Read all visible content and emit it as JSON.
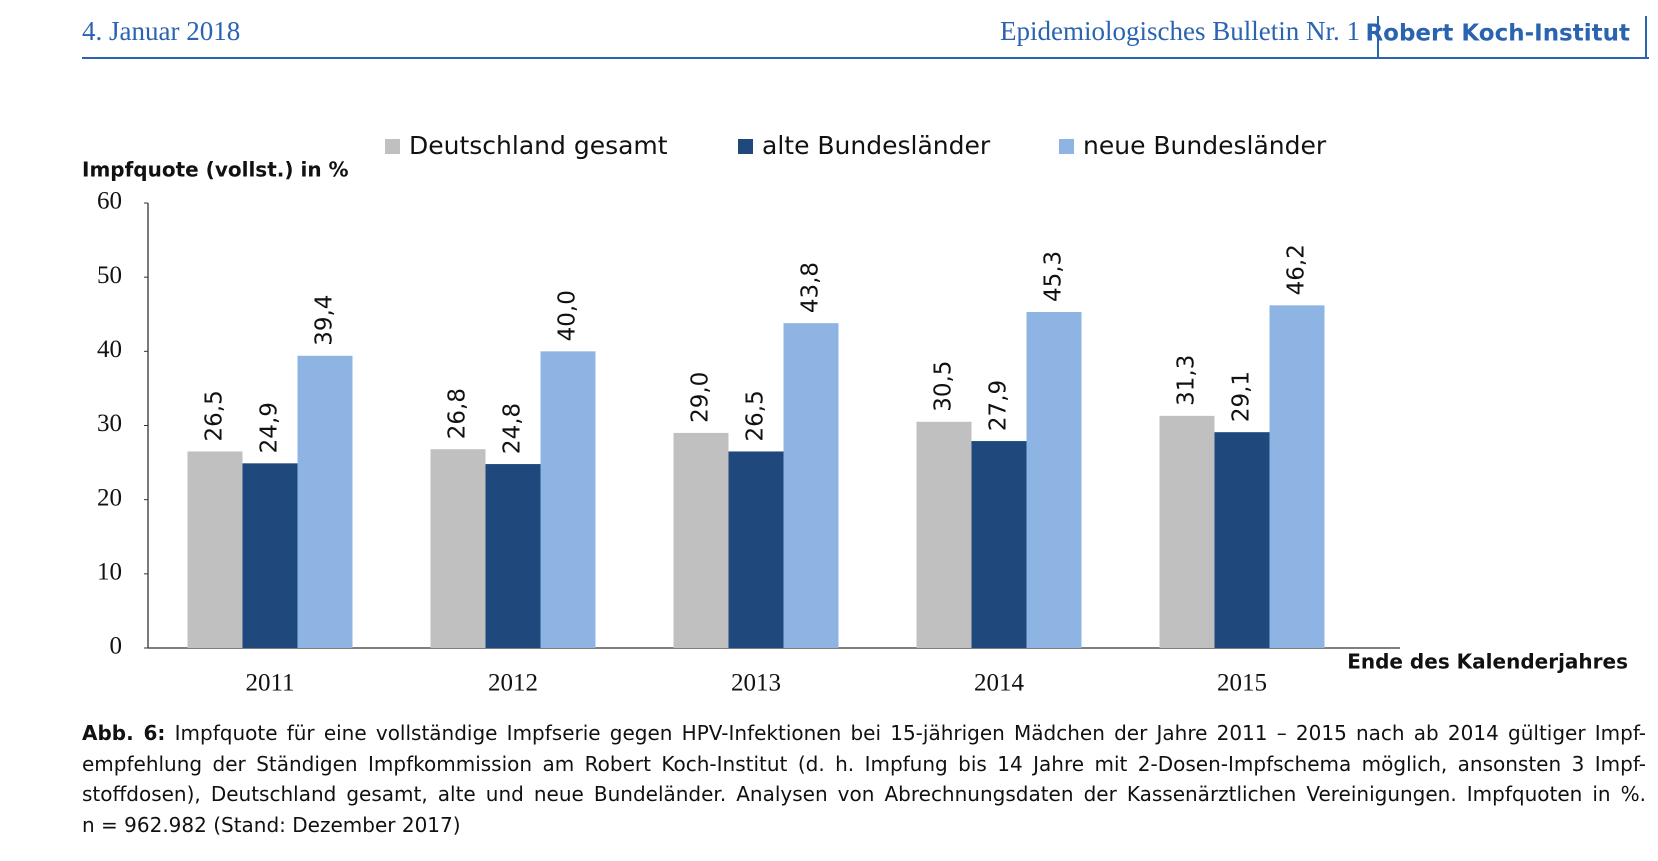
{
  "header": {
    "date": "4. Januar 2018",
    "publication": "Epidemiologisches Bulletin Nr. 1",
    "institute": "Robert Koch-Institut"
  },
  "chart_data": {
    "type": "bar",
    "y_label": "Impfquote (vollst.) in %",
    "x_label": "Ende des Kalenderjahres",
    "categories": [
      "2011",
      "2012",
      "2013",
      "2014",
      "2015"
    ],
    "series": [
      {
        "name": "Deutschland gesamt",
        "color": "#c0c0c0",
        "values": [
          26.5,
          26.8,
          29.0,
          30.5,
          31.3
        ],
        "value_labels": [
          "26,5",
          "26,8",
          "29,0",
          "30,5",
          "31,3"
        ]
      },
      {
        "name": "alte Bundesländer",
        "color": "#1f497d",
        "values": [
          24.9,
          24.8,
          26.5,
          27.9,
          29.1
        ],
        "value_labels": [
          "24,9",
          "24,8",
          "26,5",
          "27,9",
          "29,1"
        ]
      },
      {
        "name": "neue Bundesländer",
        "color": "#8eb4e3",
        "values": [
          39.4,
          40.0,
          43.8,
          45.3,
          46.2
        ],
        "value_labels": [
          "39,4",
          "40,0",
          "43,8",
          "45,3",
          "46,2"
        ]
      }
    ],
    "ylim": [
      0,
      60
    ],
    "yticks": [
      0,
      10,
      20,
      30,
      40,
      50,
      60
    ],
    "legend": "top"
  },
  "caption": {
    "label": "Abb. 6:",
    "lines": [
      "Impfquote für eine vollständige Impfserie gegen HPV-Infektionen bei 15-jährigen Mädchen der Jahre 2011 – 2015 nach ab 2014 gültiger Impf-",
      "empfehlung der Ständigen Impfkommission am Robert Koch-Institut (d. h. Impfung bis 14 Jahre mit 2-Dosen-Impfschema möglich, ansonsten 3 Impf-",
      "stoffdosen), Deutschland gesamt, alte und neue Bundeländer. Analysen von Abrechnungsdaten der Kassenärztlichen Vereinigungen. Impfquoten in %.",
      "n = 962.982 (Stand: Dezember 2017)"
    ]
  }
}
